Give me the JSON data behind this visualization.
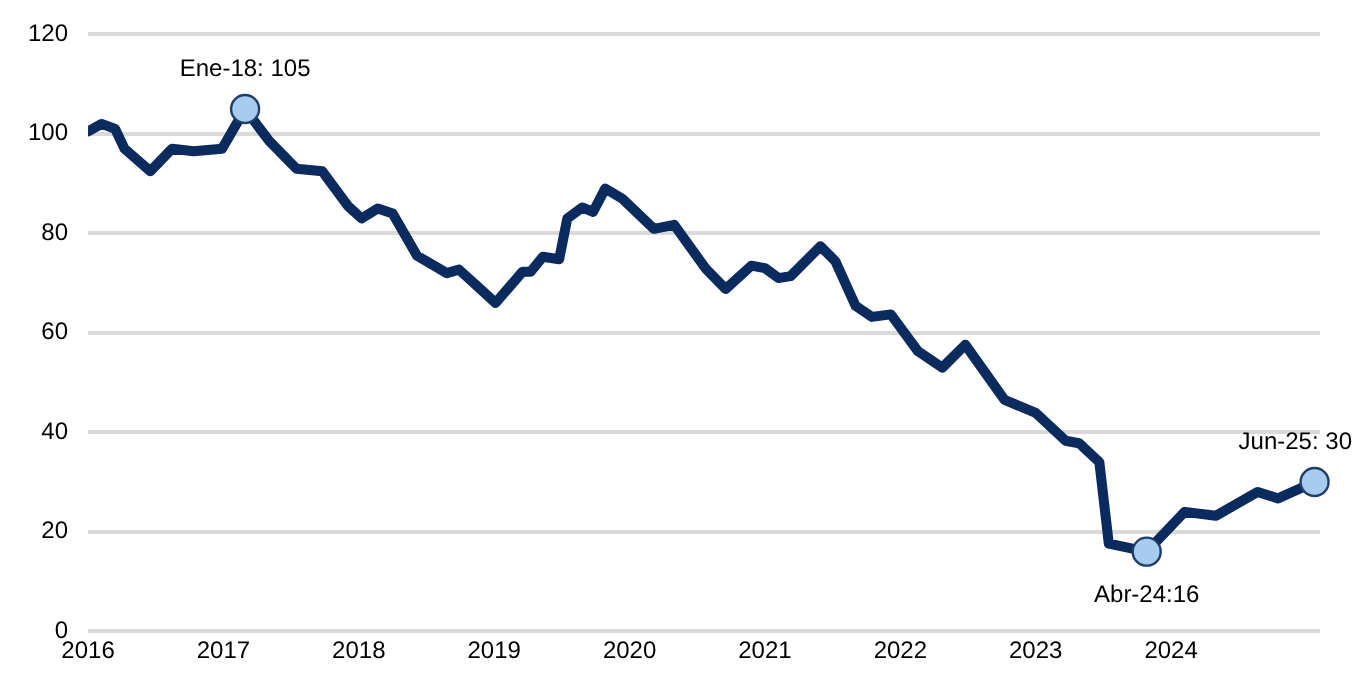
{
  "chart_data": {
    "type": "line",
    "x": [
      2016.0,
      2016.1,
      2016.2,
      2016.27,
      2016.46,
      2016.62,
      2016.78,
      2016.99,
      2017.16,
      2017.34,
      2017.54,
      2017.73,
      2017.92,
      2018.02,
      2018.14,
      2018.25,
      2018.43,
      2018.65,
      2018.74,
      2018.89,
      2019.01,
      2019.21,
      2019.27,
      2019.36,
      2019.48,
      2019.54,
      2019.65,
      2019.73,
      2019.82,
      2019.95,
      2020.18,
      2020.33,
      2020.56,
      2020.71,
      2020.9,
      2021.0,
      2021.1,
      2021.19,
      2021.41,
      2021.52,
      2021.67,
      2021.79,
      2021.93,
      2022.13,
      2022.31,
      2022.48,
      2022.77,
      2023.0,
      2023.22,
      2023.32,
      2023.47,
      2023.54,
      2023.82,
      2024.1,
      2024.33,
      2024.64,
      2024.79,
      2025.06
    ],
    "series": [
      {
        "color": "#0b2a5e",
        "values": [
          100.5,
          102,
          101,
          97,
          92.5,
          97,
          96.5,
          97,
          105,
          98.5,
          93,
          92.5,
          85.5,
          83,
          85,
          84,
          75.5,
          72,
          72.7,
          69,
          66,
          72.3,
          72.3,
          75.3,
          74.8,
          83,
          85.2,
          84.3,
          89,
          86.9,
          80.9,
          81.7,
          73,
          68.8,
          73.5,
          73,
          71,
          71.4,
          77.4,
          74.4,
          65.4,
          63.2,
          63.7,
          56.3,
          53,
          57.6,
          46.5,
          43.9,
          38.3,
          37.8,
          34,
          17.6,
          16,
          24,
          23.2,
          28,
          26.7,
          30
        ]
      }
    ],
    "xlim": [
      2016,
      2025.1
    ],
    "xticks": [
      2016,
      2017,
      2018,
      2019,
      2020,
      2021,
      2022,
      2023,
      2024
    ],
    "ylim": [
      0,
      120
    ],
    "yticks": [
      0,
      20,
      40,
      60,
      80,
      100,
      120
    ],
    "grid": "y",
    "legend": false,
    "marker": "none",
    "line_style": "solid",
    "annotations": [
      {
        "text": "Ene-18: 105",
        "x": 2017.16,
        "y": 105
      },
      {
        "text": "Abr-24:16",
        "x": 2023.82,
        "y": 16
      },
      {
        "text": "Jun-25: 30",
        "x": 2025.06,
        "y": 30
      }
    ]
  }
}
